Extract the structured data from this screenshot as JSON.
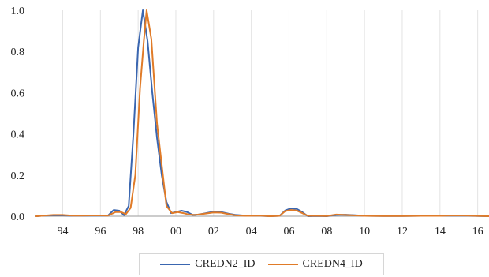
{
  "chart_data": {
    "type": "line",
    "title": "",
    "xlabel": "",
    "ylabel": "",
    "xlim": [
      1992.6,
      2016.6
    ],
    "ylim": [
      0,
      1.0
    ],
    "x_ticks": [
      1994,
      1996,
      1998,
      2000,
      2002,
      2004,
      2006,
      2008,
      2010,
      2012,
      2014,
      2016
    ],
    "x_tick_labels": [
      "94",
      "96",
      "98",
      "00",
      "02",
      "04",
      "06",
      "08",
      "10",
      "12",
      "14",
      "16"
    ],
    "y_ticks": [
      0.0,
      0.2,
      0.4,
      0.6,
      0.8,
      1.0
    ],
    "y_tick_labels": [
      "0.0",
      "0.2",
      "0.4",
      "0.6",
      "0.8",
      "1.0"
    ],
    "grid": "vertical",
    "legend_position": "bottom",
    "series": [
      {
        "name": "CREDN2_ID",
        "color": "#3a66b0",
        "points": [
          [
            1992.6,
            0.0
          ],
          [
            1993.0,
            0.003
          ],
          [
            1993.5,
            0.004
          ],
          [
            1994.0,
            0.004
          ],
          [
            1994.5,
            0.002
          ],
          [
            1995.0,
            0.002
          ],
          [
            1995.5,
            0.003
          ],
          [
            1996.0,
            0.003
          ],
          [
            1996.4,
            0.003
          ],
          [
            1996.7,
            0.03
          ],
          [
            1997.0,
            0.027
          ],
          [
            1997.25,
            0.005
          ],
          [
            1997.5,
            0.05
          ],
          [
            1997.75,
            0.4
          ],
          [
            1998.0,
            0.82
          ],
          [
            1998.25,
            1.0
          ],
          [
            1998.5,
            0.85
          ],
          [
            1998.75,
            0.6
          ],
          [
            1999.0,
            0.38
          ],
          [
            1999.25,
            0.2
          ],
          [
            1999.5,
            0.07
          ],
          [
            1999.75,
            0.015
          ],
          [
            2000.0,
            0.02
          ],
          [
            2000.3,
            0.027
          ],
          [
            2000.6,
            0.02
          ],
          [
            2000.9,
            0.006
          ],
          [
            2001.2,
            0.008
          ],
          [
            2001.6,
            0.015
          ],
          [
            2002.0,
            0.022
          ],
          [
            2002.4,
            0.02
          ],
          [
            2002.8,
            0.012
          ],
          [
            2003.2,
            0.006
          ],
          [
            2003.8,
            0.002
          ],
          [
            2004.5,
            0.002
          ],
          [
            2005.0,
            0.0
          ],
          [
            2005.5,
            0.002
          ],
          [
            2005.8,
            0.028
          ],
          [
            2006.1,
            0.038
          ],
          [
            2006.4,
            0.036
          ],
          [
            2006.7,
            0.02
          ],
          [
            2007.0,
            0.0
          ],
          [
            2007.5,
            0.001
          ],
          [
            2008.0,
            0.0
          ],
          [
            2008.5,
            0.006
          ],
          [
            2009.0,
            0.007
          ],
          [
            2009.5,
            0.005
          ],
          [
            2010.0,
            0.002
          ],
          [
            2011.0,
            0.001
          ],
          [
            2012.0,
            0.001
          ],
          [
            2013.0,
            0.002
          ],
          [
            2014.0,
            0.002
          ],
          [
            2014.8,
            0.003
          ],
          [
            2015.5,
            0.002
          ],
          [
            2016.6,
            0.0
          ]
        ]
      },
      {
        "name": "CREDN4_ID",
        "color": "#e07b28",
        "points": [
          [
            1992.6,
            0.0
          ],
          [
            1993.0,
            0.003
          ],
          [
            1993.5,
            0.006
          ],
          [
            1994.0,
            0.006
          ],
          [
            1994.5,
            0.003
          ],
          [
            1995.0,
            0.003
          ],
          [
            1995.5,
            0.004
          ],
          [
            1996.0,
            0.004
          ],
          [
            1996.4,
            0.003
          ],
          [
            1996.8,
            0.02
          ],
          [
            1997.1,
            0.02
          ],
          [
            1997.35,
            0.01
          ],
          [
            1997.6,
            0.04
          ],
          [
            1997.85,
            0.2
          ],
          [
            1998.1,
            0.62
          ],
          [
            1998.3,
            0.85
          ],
          [
            1998.45,
            1.0
          ],
          [
            1998.7,
            0.86
          ],
          [
            1999.0,
            0.45
          ],
          [
            1999.25,
            0.25
          ],
          [
            1999.5,
            0.05
          ],
          [
            1999.8,
            0.015
          ],
          [
            2000.1,
            0.02
          ],
          [
            2000.4,
            0.015
          ],
          [
            2000.7,
            0.008
          ],
          [
            2001.0,
            0.006
          ],
          [
            2001.5,
            0.012
          ],
          [
            2002.0,
            0.018
          ],
          [
            2002.4,
            0.017
          ],
          [
            2002.8,
            0.01
          ],
          [
            2003.2,
            0.004
          ],
          [
            2003.8,
            0.002
          ],
          [
            2004.5,
            0.003
          ],
          [
            2005.0,
            0.0
          ],
          [
            2005.5,
            0.002
          ],
          [
            2005.8,
            0.025
          ],
          [
            2006.1,
            0.03
          ],
          [
            2006.4,
            0.028
          ],
          [
            2006.7,
            0.015
          ],
          [
            2007.0,
            0.002
          ],
          [
            2007.5,
            0.002
          ],
          [
            2008.0,
            0.001
          ],
          [
            2008.5,
            0.008
          ],
          [
            2009.0,
            0.006
          ],
          [
            2009.5,
            0.004
          ],
          [
            2010.0,
            0.002
          ],
          [
            2011.0,
            0.001
          ],
          [
            2012.0,
            0.001
          ],
          [
            2013.0,
            0.002
          ],
          [
            2014.0,
            0.002
          ],
          [
            2014.8,
            0.004
          ],
          [
            2015.5,
            0.003
          ],
          [
            2016.6,
            0.0
          ]
        ]
      }
    ]
  }
}
